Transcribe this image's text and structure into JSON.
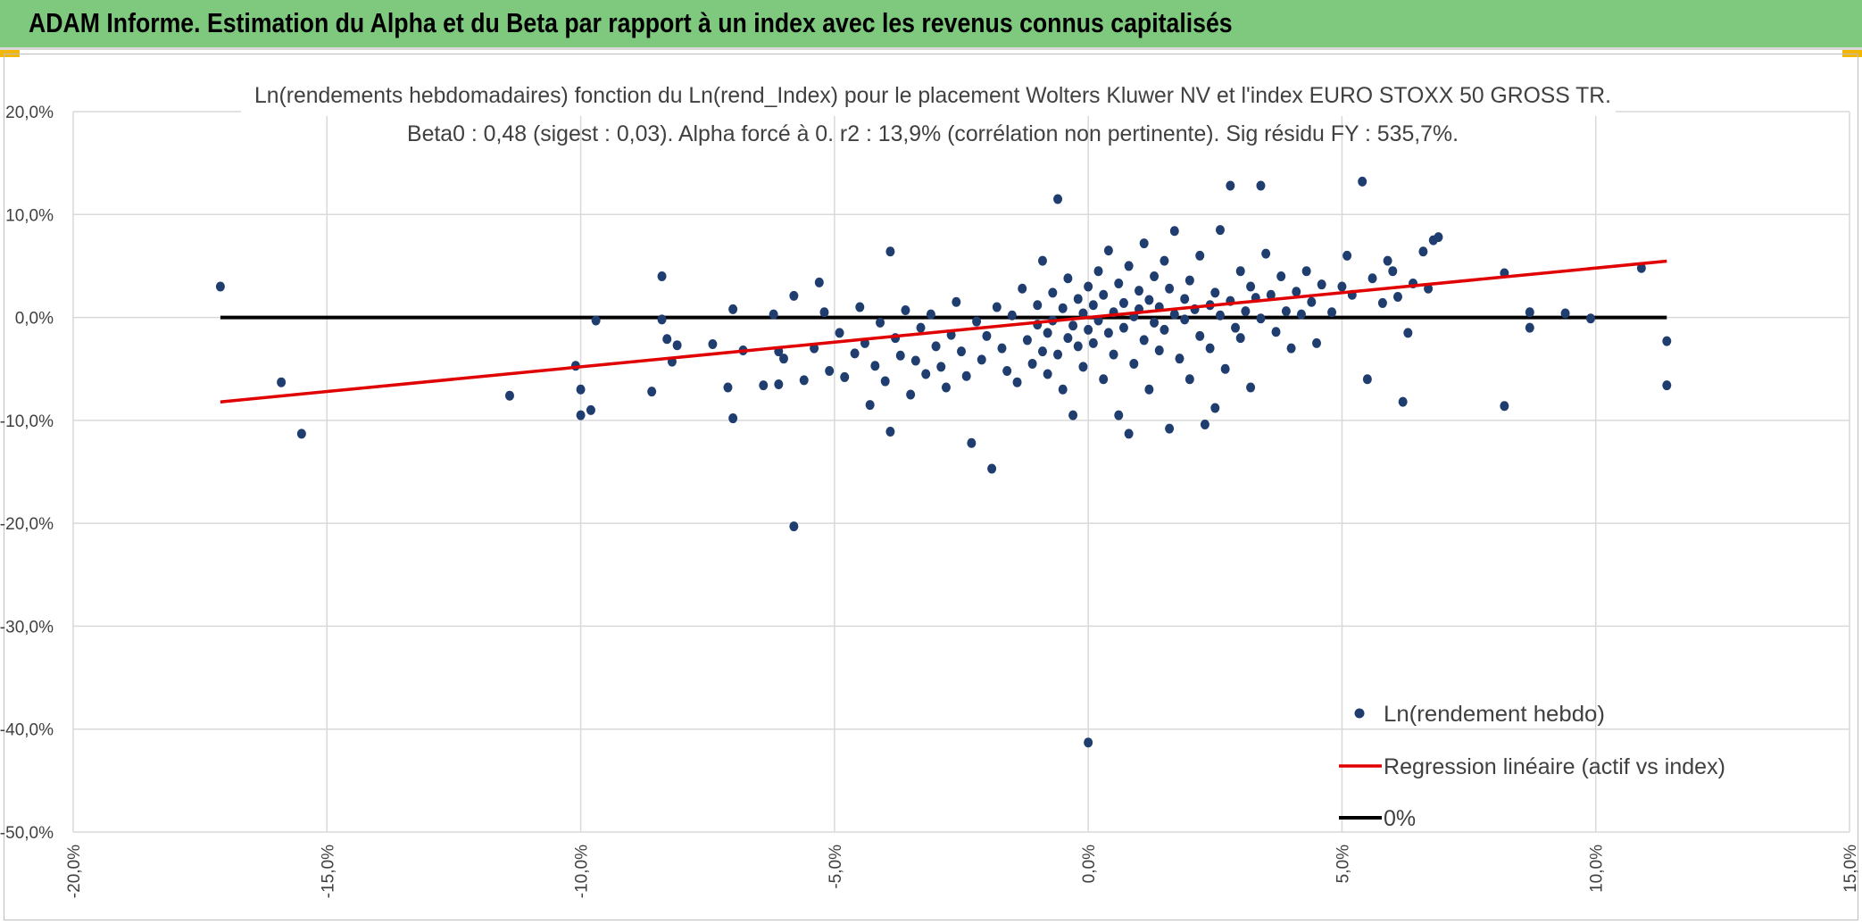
{
  "banner": {
    "title": "ADAM Informe. Estimation du Alpha et du Beta par rapport à un index avec les revenus connus capitalisés"
  },
  "colors": {
    "banner_bg": "#7fc97f",
    "points": "#1f3d6e",
    "regression": "#e00000",
    "zero_line": "#000000",
    "grid": "#d9d9d9"
  },
  "chart_data": {
    "type": "scatter",
    "title": "Ln(rendements hebdomadaires) fonction du Ln(rend_Index) pour le placement Wolters Kluwer NV et l'index EURO STOXX 50 GROSS TR.",
    "subtitle": "Beta0 : 0,48 (sigest : 0,03). Alpha forcé à 0. r2 : 13,9% (corrélation non pertinente). Sig résidu FY : 535,7%.",
    "xlim": [
      -0.2,
      0.15
    ],
    "ylim": [
      -0.5,
      0.2
    ],
    "x_ticks": [
      -0.2,
      -0.15,
      -0.1,
      -0.05,
      0.0,
      0.05,
      0.1,
      0.15
    ],
    "x_tick_labels": [
      "-20,0%",
      "-15,0%",
      "-10,0%",
      "-5,0%",
      "0,0%",
      "5,0%",
      "10,0%",
      "15,0%"
    ],
    "y_ticks": [
      0.2,
      0.1,
      0.0,
      -0.1,
      -0.2,
      -0.3,
      -0.4,
      -0.5
    ],
    "y_tick_labels": [
      "20,0%",
      "10,0%",
      "0,0%",
      "-10,0%",
      "-20,0%",
      "-30,0%",
      "-40,0%",
      "-50,0%"
    ],
    "grid": true,
    "legend_position": "bottom-right",
    "legend": [
      {
        "label": "Ln(rendement hebdo)",
        "kind": "marker"
      },
      {
        "label": "Regression linéaire (actif vs index)",
        "kind": "line-red"
      },
      {
        "label": "0%",
        "kind": "line-black"
      }
    ],
    "regression": {
      "slope": 0.48,
      "intercept": 0.0,
      "x_range": [
        -0.171,
        0.114
      ]
    },
    "zero_line": {
      "y": 0.0,
      "x_range": [
        -0.171,
        0.114
      ]
    },
    "series": [
      {
        "name": "Ln(rendement hebdo)",
        "points": [
          [
            -0.171,
            0.03
          ],
          [
            -0.159,
            -0.063
          ],
          [
            -0.155,
            -0.113
          ],
          [
            -0.114,
            -0.076
          ],
          [
            -0.101,
            -0.047
          ],
          [
            -0.1,
            -0.07
          ],
          [
            -0.1,
            -0.095
          ],
          [
            -0.098,
            -0.09
          ],
          [
            -0.097,
            -0.003
          ],
          [
            -0.086,
            -0.072
          ],
          [
            -0.084,
            0.04
          ],
          [
            -0.084,
            -0.002
          ],
          [
            -0.083,
            -0.021
          ],
          [
            -0.082,
            -0.043
          ],
          [
            -0.081,
            -0.027
          ],
          [
            -0.074,
            -0.026
          ],
          [
            -0.071,
            -0.068
          ],
          [
            -0.07,
            0.008
          ],
          [
            -0.07,
            -0.098
          ],
          [
            -0.068,
            -0.032
          ],
          [
            -0.064,
            -0.066
          ],
          [
            -0.062,
            0.003
          ],
          [
            -0.061,
            -0.033
          ],
          [
            -0.061,
            -0.065
          ],
          [
            -0.06,
            -0.04
          ],
          [
            -0.058,
            -0.203
          ],
          [
            -0.058,
            0.021
          ],
          [
            -0.056,
            -0.061
          ],
          [
            -0.054,
            -0.03
          ],
          [
            -0.053,
            0.034
          ],
          [
            -0.052,
            0.005
          ],
          [
            -0.051,
            -0.052
          ],
          [
            -0.049,
            -0.015
          ],
          [
            -0.048,
            -0.058
          ],
          [
            -0.046,
            -0.035
          ],
          [
            -0.045,
            0.01
          ],
          [
            -0.044,
            -0.025
          ],
          [
            -0.043,
            -0.085
          ],
          [
            -0.042,
            -0.047
          ],
          [
            -0.041,
            -0.005
          ],
          [
            -0.04,
            -0.062
          ],
          [
            -0.039,
            0.064
          ],
          [
            -0.039,
            -0.111
          ],
          [
            -0.038,
            -0.02
          ],
          [
            -0.037,
            -0.037
          ],
          [
            -0.036,
            0.007
          ],
          [
            -0.035,
            -0.075
          ],
          [
            -0.034,
            -0.042
          ],
          [
            -0.033,
            -0.01
          ],
          [
            -0.032,
            -0.055
          ],
          [
            -0.031,
            0.003
          ],
          [
            -0.03,
            -0.028
          ],
          [
            -0.029,
            -0.048
          ],
          [
            -0.028,
            -0.068
          ],
          [
            -0.027,
            -0.017
          ],
          [
            -0.026,
            0.015
          ],
          [
            -0.025,
            -0.033
          ],
          [
            -0.024,
            -0.057
          ],
          [
            -0.023,
            -0.122
          ],
          [
            -0.022,
            -0.004
          ],
          [
            -0.021,
            -0.041
          ],
          [
            -0.02,
            -0.018
          ],
          [
            -0.019,
            -0.147
          ],
          [
            -0.018,
            0.01
          ],
          [
            -0.017,
            -0.03
          ],
          [
            -0.016,
            -0.052
          ],
          [
            -0.015,
            0.002
          ],
          [
            -0.014,
            -0.063
          ],
          [
            -0.013,
            0.028
          ],
          [
            -0.012,
            -0.022
          ],
          [
            -0.011,
            -0.045
          ],
          [
            -0.01,
            0.012
          ],
          [
            -0.01,
            -0.007
          ],
          [
            -0.009,
            -0.033
          ],
          [
            -0.009,
            0.055
          ],
          [
            -0.008,
            -0.015
          ],
          [
            -0.008,
            -0.055
          ],
          [
            -0.007,
            0.024
          ],
          [
            -0.007,
            -0.003
          ],
          [
            -0.006,
            -0.036
          ],
          [
            -0.006,
            0.115
          ],
          [
            -0.005,
            0.009
          ],
          [
            -0.005,
            -0.07
          ],
          [
            -0.004,
            -0.02
          ],
          [
            -0.004,
            0.038
          ],
          [
            -0.003,
            -0.008
          ],
          [
            -0.003,
            -0.095
          ],
          [
            -0.002,
            0.018
          ],
          [
            -0.002,
            -0.028
          ],
          [
            -0.001,
            0.004
          ],
          [
            -0.001,
            -0.048
          ],
          [
            0.0,
            0.03
          ],
          [
            0.0,
            -0.012
          ],
          [
            0.0,
            -0.413
          ],
          [
            0.001,
            0.012
          ],
          [
            0.001,
            -0.025
          ],
          [
            0.002,
            0.045
          ],
          [
            0.002,
            -0.003
          ],
          [
            0.003,
            -0.06
          ],
          [
            0.003,
            0.022
          ],
          [
            0.004,
            -0.015
          ],
          [
            0.004,
            0.065
          ],
          [
            0.005,
            0.005
          ],
          [
            0.005,
            -0.036
          ],
          [
            0.006,
            0.033
          ],
          [
            0.006,
            -0.095
          ],
          [
            0.007,
            0.014
          ],
          [
            0.007,
            -0.01
          ],
          [
            0.008,
            -0.113
          ],
          [
            0.008,
            0.05
          ],
          [
            0.009,
            0.001
          ],
          [
            0.009,
            -0.045
          ],
          [
            0.01,
            0.026
          ],
          [
            0.01,
            0.008
          ],
          [
            0.011,
            -0.022
          ],
          [
            0.011,
            0.072
          ],
          [
            0.012,
            0.017
          ],
          [
            0.012,
            -0.07
          ],
          [
            0.013,
            -0.005
          ],
          [
            0.013,
            0.04
          ],
          [
            0.014,
            0.01
          ],
          [
            0.014,
            -0.032
          ],
          [
            0.015,
            0.055
          ],
          [
            0.015,
            -0.012
          ],
          [
            0.016,
            0.028
          ],
          [
            0.016,
            -0.108
          ],
          [
            0.017,
            0.003
          ],
          [
            0.017,
            0.084
          ],
          [
            0.018,
            -0.04
          ],
          [
            0.019,
            0.018
          ],
          [
            0.019,
            -0.002
          ],
          [
            0.02,
            0.036
          ],
          [
            0.02,
            -0.06
          ],
          [
            0.021,
            0.008
          ],
          [
            0.022,
            -0.018
          ],
          [
            0.022,
            0.06
          ],
          [
            0.023,
            -0.104
          ],
          [
            0.024,
            0.012
          ],
          [
            0.024,
            -0.03
          ],
          [
            0.025,
            0.024
          ],
          [
            0.025,
            -0.088
          ],
          [
            0.026,
            0.002
          ],
          [
            0.026,
            0.085
          ],
          [
            0.027,
            -0.05
          ],
          [
            0.028,
            0.016
          ],
          [
            0.028,
            0.128
          ],
          [
            0.029,
            -0.01
          ],
          [
            0.03,
            0.045
          ],
          [
            0.03,
            -0.02
          ],
          [
            0.031,
            0.006
          ],
          [
            0.032,
            0.03
          ],
          [
            0.032,
            -0.068
          ],
          [
            0.033,
            0.019
          ],
          [
            0.034,
            -0.001
          ],
          [
            0.034,
            0.128
          ],
          [
            0.035,
            0.062
          ],
          [
            0.036,
            0.022
          ],
          [
            0.037,
            -0.014
          ],
          [
            0.038,
            0.04
          ],
          [
            0.039,
            0.006
          ],
          [
            0.04,
            -0.03
          ],
          [
            0.041,
            0.025
          ],
          [
            0.042,
            0.003
          ],
          [
            0.043,
            0.045
          ],
          [
            0.044,
            0.015
          ],
          [
            0.045,
            -0.025
          ],
          [
            0.046,
            0.032
          ],
          [
            0.048,
            0.005
          ],
          [
            0.05,
            0.03
          ],
          [
            0.051,
            0.06
          ],
          [
            0.052,
            0.022
          ],
          [
            0.054,
            0.132
          ],
          [
            0.055,
            -0.06
          ],
          [
            0.056,
            0.038
          ],
          [
            0.058,
            0.014
          ],
          [
            0.059,
            0.055
          ],
          [
            0.06,
            0.045
          ],
          [
            0.061,
            0.02
          ],
          [
            0.062,
            -0.082
          ],
          [
            0.063,
            -0.015
          ],
          [
            0.064,
            0.033
          ],
          [
            0.066,
            0.064
          ],
          [
            0.067,
            0.028
          ],
          [
            0.068,
            0.075
          ],
          [
            0.069,
            0.078
          ],
          [
            0.082,
            0.043
          ],
          [
            0.082,
            -0.086
          ],
          [
            0.087,
            0.005
          ],
          [
            0.087,
            -0.01
          ],
          [
            0.094,
            0.004
          ],
          [
            0.099,
            -0.001
          ],
          [
            0.109,
            0.048
          ],
          [
            0.114,
            -0.023
          ],
          [
            0.114,
            -0.066
          ]
        ]
      }
    ]
  }
}
